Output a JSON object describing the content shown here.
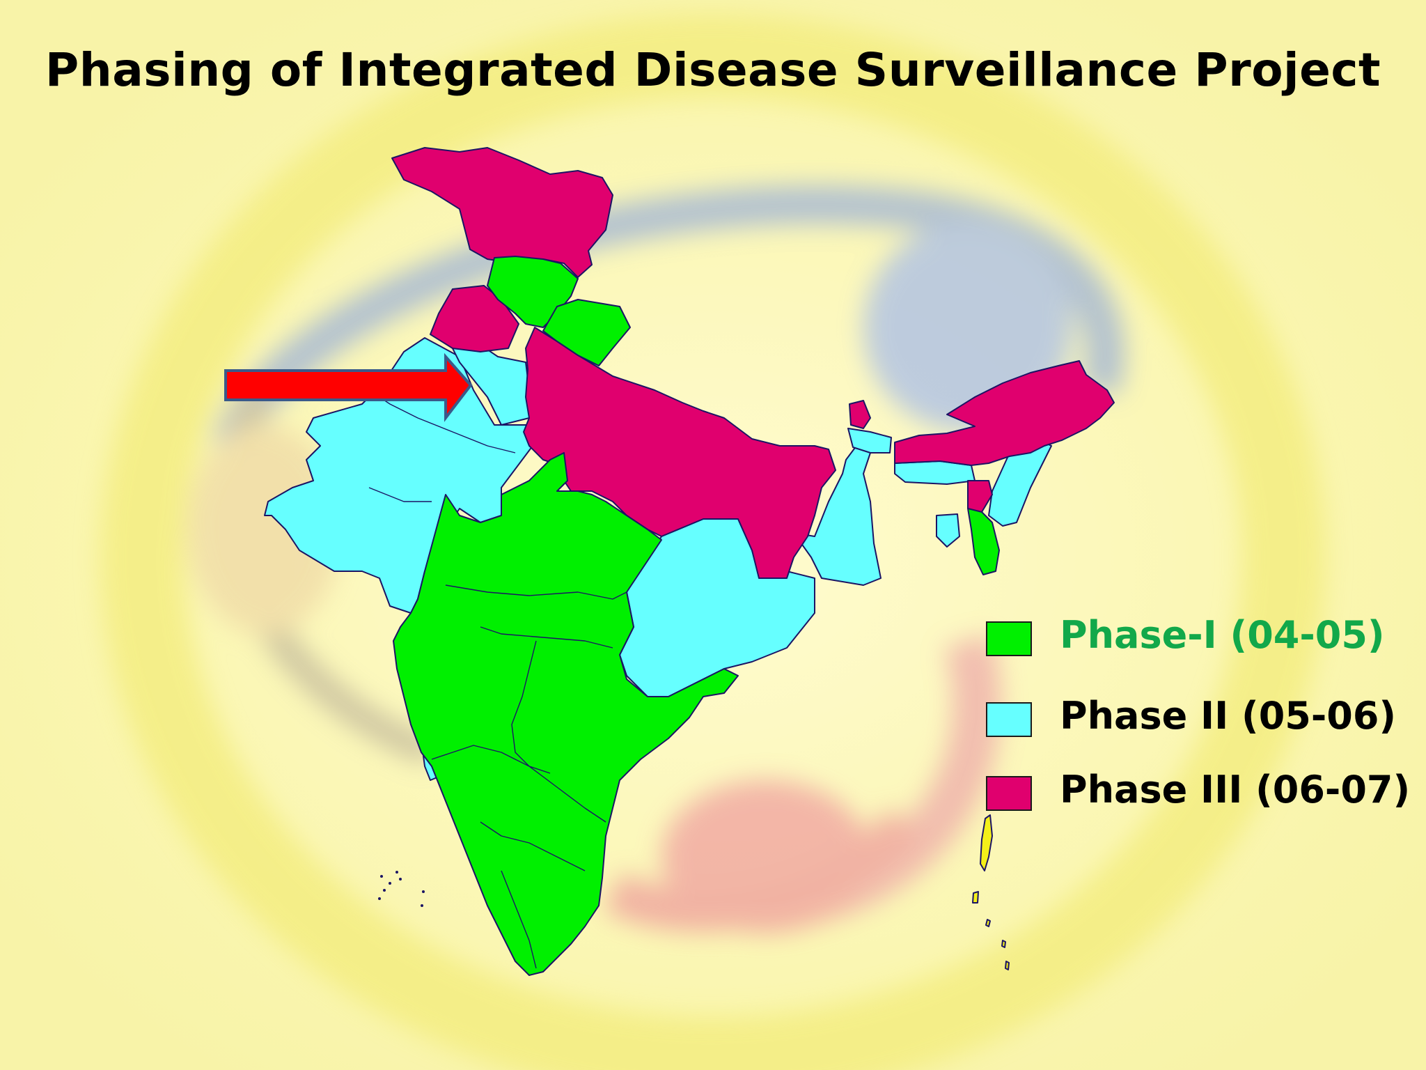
{
  "title": "Phasing of Integrated Disease Surveillance Project",
  "colors": {
    "phase1": "#00f000",
    "phase2": "#66ffff",
    "phase3": "#e0006e",
    "island_yellow": "#f4f01a",
    "border": "#1b1464",
    "arrow": "#ff0000",
    "arrow_outline": "#3a5a8a",
    "legend_phase1_text": "#12a84a",
    "legend_text": "#000000"
  },
  "legend": [
    {
      "label": "Phase-I (04-05)",
      "color_key": "phase1"
    },
    {
      "label": "Phase II (05-06)",
      "color_key": "phase2"
    },
    {
      "label": "Phase III (06-07)",
      "color_key": "phase3"
    }
  ],
  "icons": {
    "pointer": "right-arrow-icon"
  }
}
